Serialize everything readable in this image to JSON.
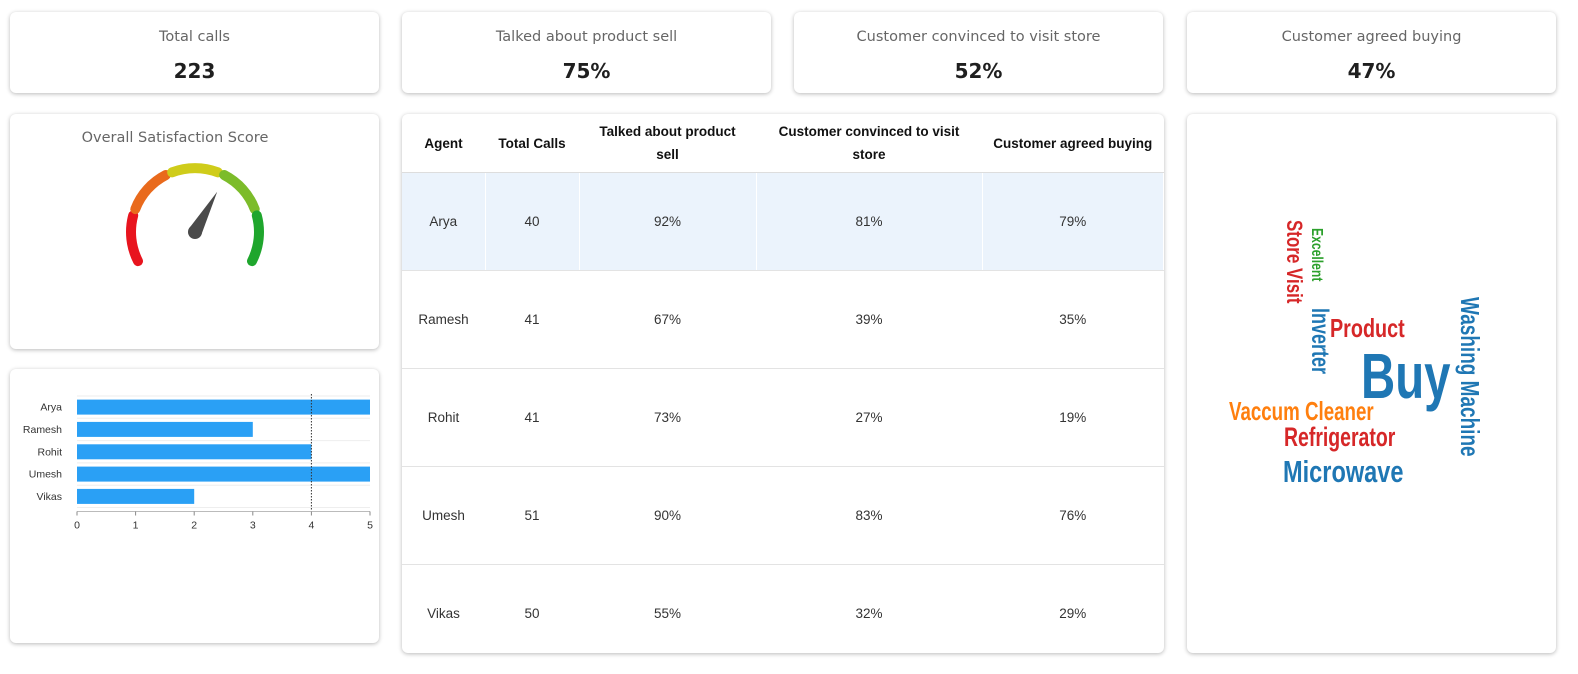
{
  "kpis": [
    {
      "label": "Total calls",
      "value": "223"
    },
    {
      "label": "Talked about product sell",
      "value": "75%"
    },
    {
      "label": "Customer convinced to visit store",
      "value": "52%"
    },
    {
      "label": "Customer agreed buying",
      "value": "47%"
    }
  ],
  "gauge": {
    "title": "Overall Satisfaction Score",
    "segment_colors": [
      "#e8141e",
      "#e96a1c",
      "#cfcc1a",
      "#7cbc2a",
      "#1fa62d"
    ],
    "needle_color": "#4a4a4a",
    "needle_value": 0.62
  },
  "table": {
    "headers": [
      "Agent",
      "Total Calls",
      "Talked about product sell",
      "Customer convinced to visit store",
      "Customer agreed buying"
    ],
    "rows": [
      [
        "Arya",
        "40",
        "92%",
        "81%",
        "79%"
      ],
      [
        "Ramesh",
        "41",
        "67%",
        "39%",
        "35%"
      ],
      [
        "Rohit",
        "41",
        "73%",
        "27%",
        "19%"
      ],
      [
        "Umesh",
        "51",
        "90%",
        "83%",
        "76%"
      ],
      [
        "Vikas",
        "50",
        "55%",
        "32%",
        "29%"
      ]
    ],
    "selected_row": "Arya"
  },
  "chart_data": {
    "type": "bar",
    "orientation": "horizontal",
    "categories": [
      "Arya",
      "Ramesh",
      "Rohit",
      "Umesh",
      "Vikas"
    ],
    "values": [
      5,
      3,
      4,
      5,
      2
    ],
    "xlim": [
      0,
      5
    ],
    "xticks": [
      "0",
      "1",
      "2",
      "3",
      "4",
      "5"
    ],
    "reference_line": 4,
    "bar_color": "#2aa0f5",
    "grid": false
  },
  "word_cloud": [
    {
      "text": "Buy",
      "color": "#1f77b4"
    },
    {
      "text": "Washing Machine",
      "color": "#1f77b4"
    },
    {
      "text": "Product",
      "color": "#d62728"
    },
    {
      "text": "Store Visit",
      "color": "#d62728"
    },
    {
      "text": "Excellent",
      "color": "#2ca02c"
    },
    {
      "text": "Inverter",
      "color": "#1f77b4"
    },
    {
      "text": "Vaccum Cleaner",
      "color": "#ff7f0e"
    },
    {
      "text": "Refrigerator",
      "color": "#d62728"
    },
    {
      "text": "Microwave",
      "color": "#1f77b4"
    }
  ]
}
